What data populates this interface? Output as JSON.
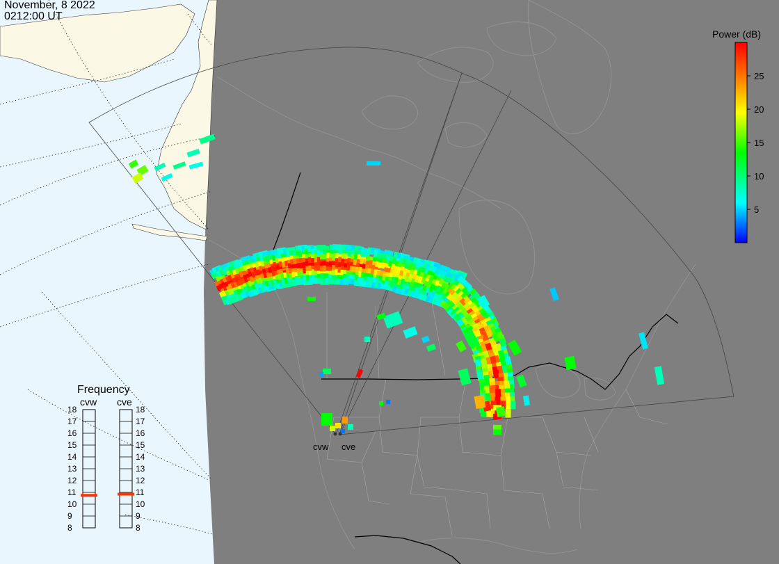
{
  "header": {
    "date": "November, 8 2022",
    "time": "0212:00 UT"
  },
  "colorbar": {
    "title": "Power (dB)",
    "ticks": [
      5,
      10,
      15,
      20,
      25
    ],
    "range": [
      0,
      30
    ],
    "colors": [
      "#0000ff",
      "#00ffff",
      "#00ff00",
      "#ffff00",
      "#ff8000",
      "#ff0000"
    ]
  },
  "frequency_panel": {
    "title": "Frequency",
    "scale": [
      8,
      9,
      10,
      11,
      12,
      13,
      14,
      15,
      16,
      17,
      18
    ],
    "radars": [
      {
        "name": "cvw",
        "frequency": 10.75
      },
      {
        "name": "cve",
        "frequency": 10.85
      }
    ]
  },
  "map": {
    "sites": [
      {
        "name": "cvw"
      },
      {
        "name": "cve"
      }
    ]
  },
  "colors": {
    "ocean": "#eaf6fd",
    "land_day": "#fbf8e6",
    "night": "#7f7f7f",
    "indicator": "#ff3300"
  }
}
